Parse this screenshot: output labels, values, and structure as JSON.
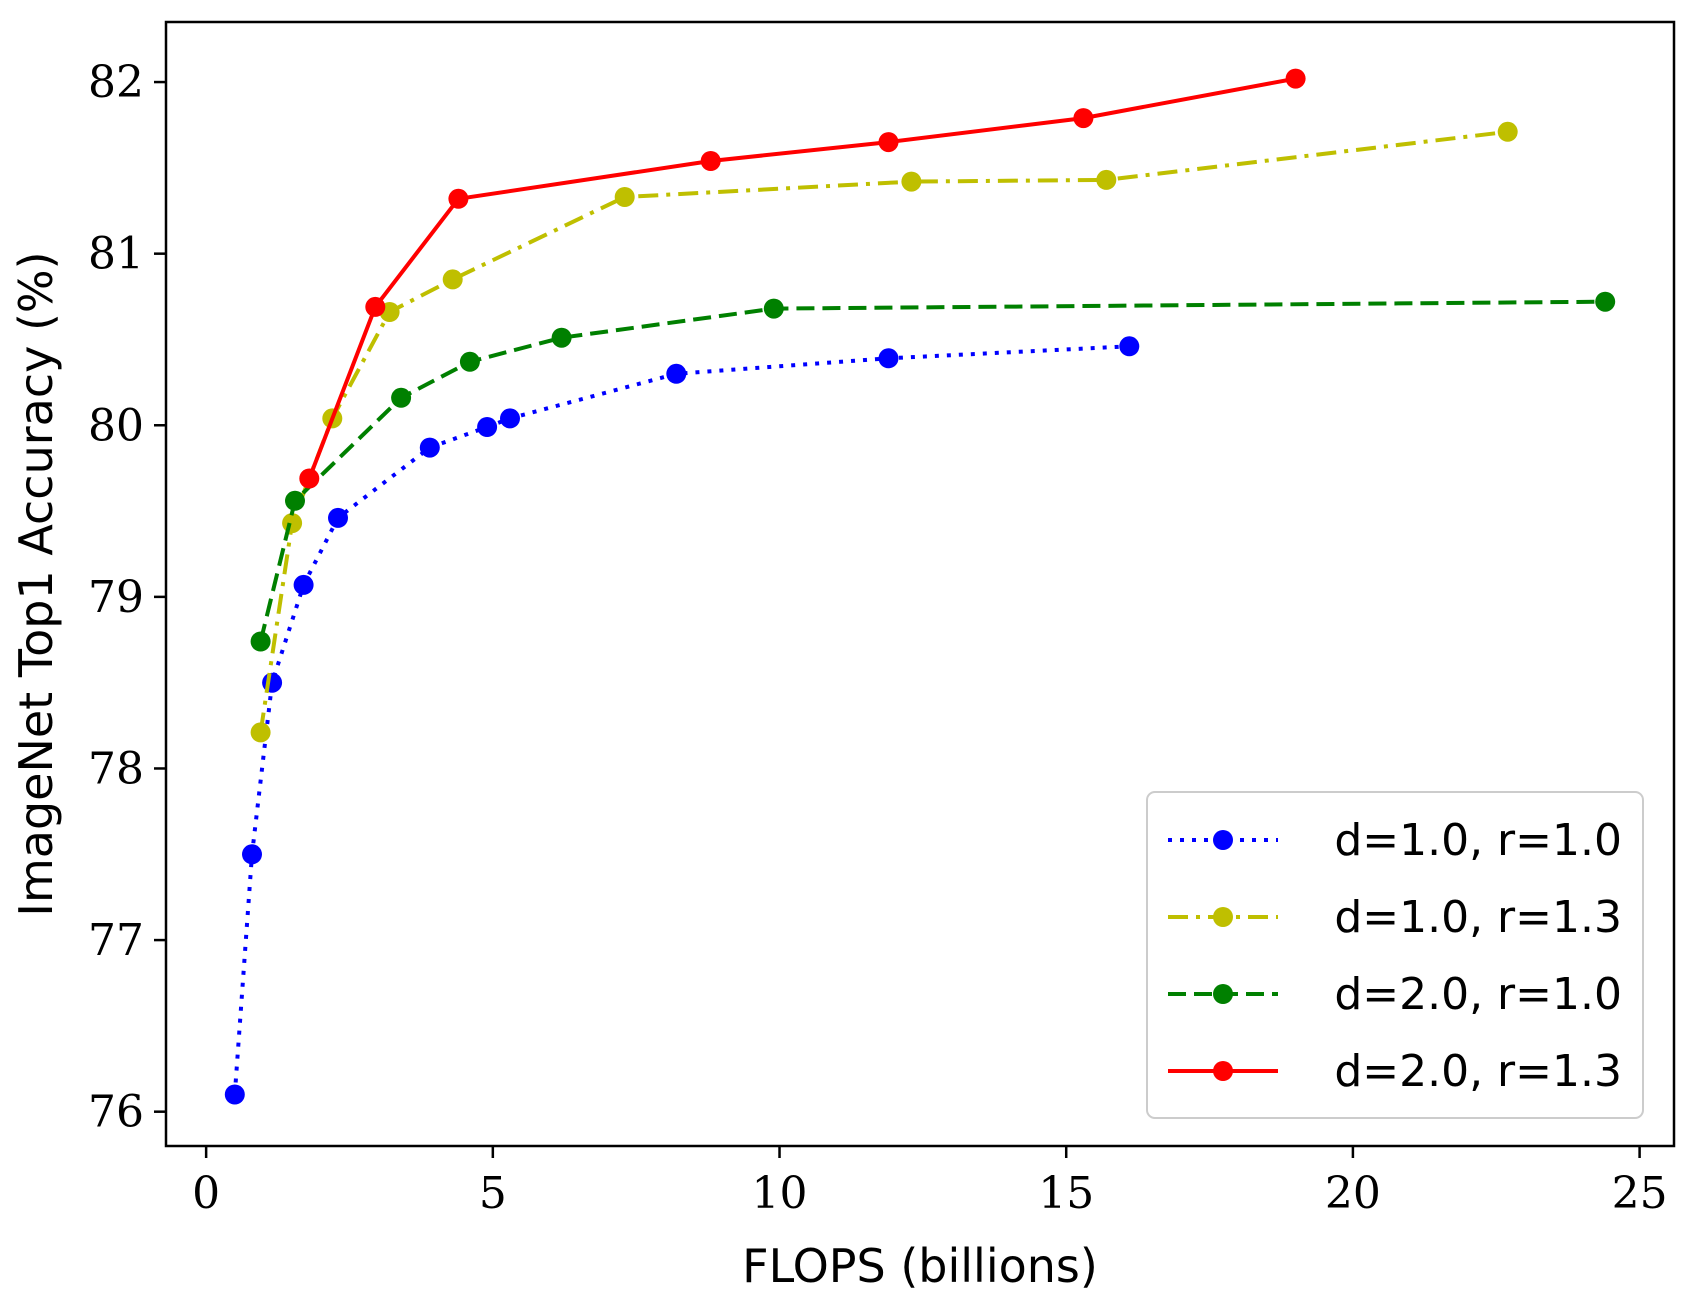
{
  "chart_data": {
    "type": "line",
    "xlabel": "FLOPS (billions)",
    "ylabel": "ImageNet Top1 Accuracy (%)",
    "xlim": [
      -0.7,
      25.6
    ],
    "ylim": [
      75.8,
      82.35
    ],
    "xticks": [
      0,
      5,
      10,
      15,
      20,
      25
    ],
    "yticks": [
      76,
      77,
      78,
      79,
      80,
      81,
      82
    ],
    "grid": false,
    "legend_position": "lower-right",
    "series": [
      {
        "name": "d=1.0, r=1.0",
        "color": "#0000ff",
        "dash": "dotted",
        "points": [
          [
            0.5,
            76.1
          ],
          [
            0.8,
            77.5
          ],
          [
            1.15,
            78.5
          ],
          [
            1.7,
            79.07
          ],
          [
            2.3,
            79.46
          ],
          [
            3.9,
            79.87
          ],
          [
            4.9,
            79.99
          ],
          [
            5.3,
            80.04
          ],
          [
            8.2,
            80.3
          ],
          [
            11.9,
            80.39
          ],
          [
            16.1,
            80.46
          ]
        ]
      },
      {
        "name": "d=1.0, r=1.3",
        "color": "#bfbf00",
        "dash": "dashdot",
        "points": [
          [
            0.95,
            78.21
          ],
          [
            1.5,
            79.43
          ],
          [
            2.2,
            80.04
          ],
          [
            3.2,
            80.66
          ],
          [
            4.3,
            80.85
          ],
          [
            7.3,
            81.33
          ],
          [
            12.3,
            81.42
          ],
          [
            15.7,
            81.43
          ],
          [
            22.7,
            81.71
          ]
        ]
      },
      {
        "name": "d=2.0, r=1.0",
        "color": "#008000",
        "dash": "dashed",
        "points": [
          [
            0.95,
            78.74
          ],
          [
            1.55,
            79.56
          ],
          [
            3.4,
            80.16
          ],
          [
            4.6,
            80.37
          ],
          [
            6.2,
            80.51
          ],
          [
            9.9,
            80.68
          ],
          [
            24.4,
            80.72
          ]
        ]
      },
      {
        "name": "d=2.0, r=1.3",
        "color": "#ff0000",
        "dash": "solid",
        "points": [
          [
            1.8,
            79.69
          ],
          [
            2.95,
            80.69
          ],
          [
            4.4,
            81.32
          ],
          [
            8.8,
            81.54
          ],
          [
            11.9,
            81.65
          ],
          [
            15.3,
            81.79
          ],
          [
            19.0,
            82.02
          ]
        ]
      }
    ]
  }
}
